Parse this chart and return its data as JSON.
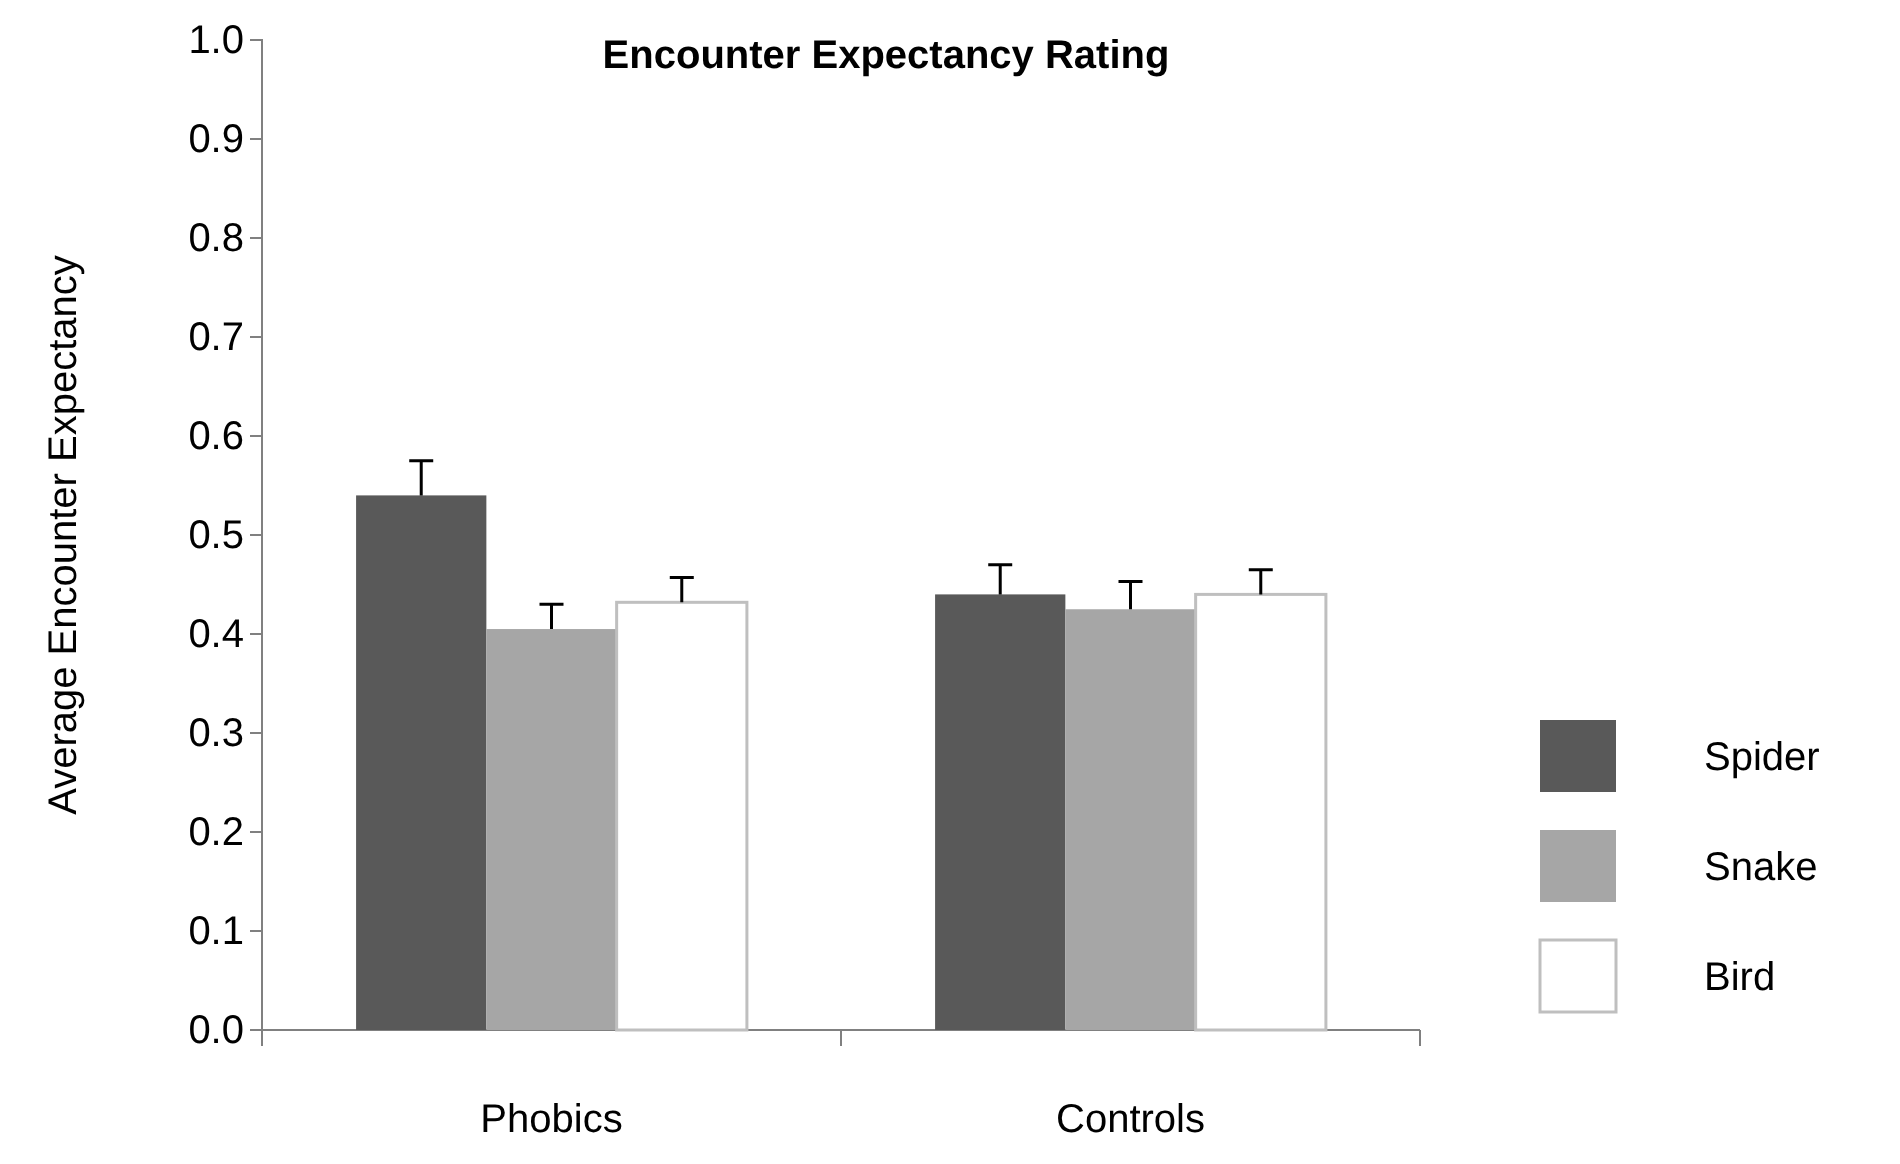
{
  "chart_data": {
    "type": "bar",
    "title": "Encounter Expectancy Rating",
    "ylabel": "Average Encounter Expectancy",
    "categories": [
      "Phobics",
      "Controls"
    ],
    "series": [
      {
        "name": "Spider",
        "color": "#595959",
        "values": [
          0.54,
          0.44
        ],
        "errors": [
          [
            0.54,
            0.575
          ],
          [
            0.44,
            0.47
          ]
        ]
      },
      {
        "name": "Snake",
        "color": "#a6a6a6",
        "values": [
          0.405,
          0.425
        ],
        "errors": [
          [
            0.405,
            0.43
          ],
          [
            0.425,
            0.453
          ]
        ]
      },
      {
        "name": "Bird",
        "color": "#ffffff",
        "values": [
          0.432,
          0.44
        ],
        "errors": [
          [
            0.432,
            0.457
          ],
          [
            0.44,
            0.465
          ]
        ]
      }
    ],
    "ylim": [
      0,
      1
    ],
    "yticks": [
      {
        "value": 0,
        "label": "0.0"
      },
      0.1,
      0.2,
      0.3,
      0.4,
      0.5,
      0.6,
      0.7,
      0.8,
      0.9,
      {
        "value": 1,
        "label": "1.0"
      }
    ],
    "legend": "right"
  }
}
